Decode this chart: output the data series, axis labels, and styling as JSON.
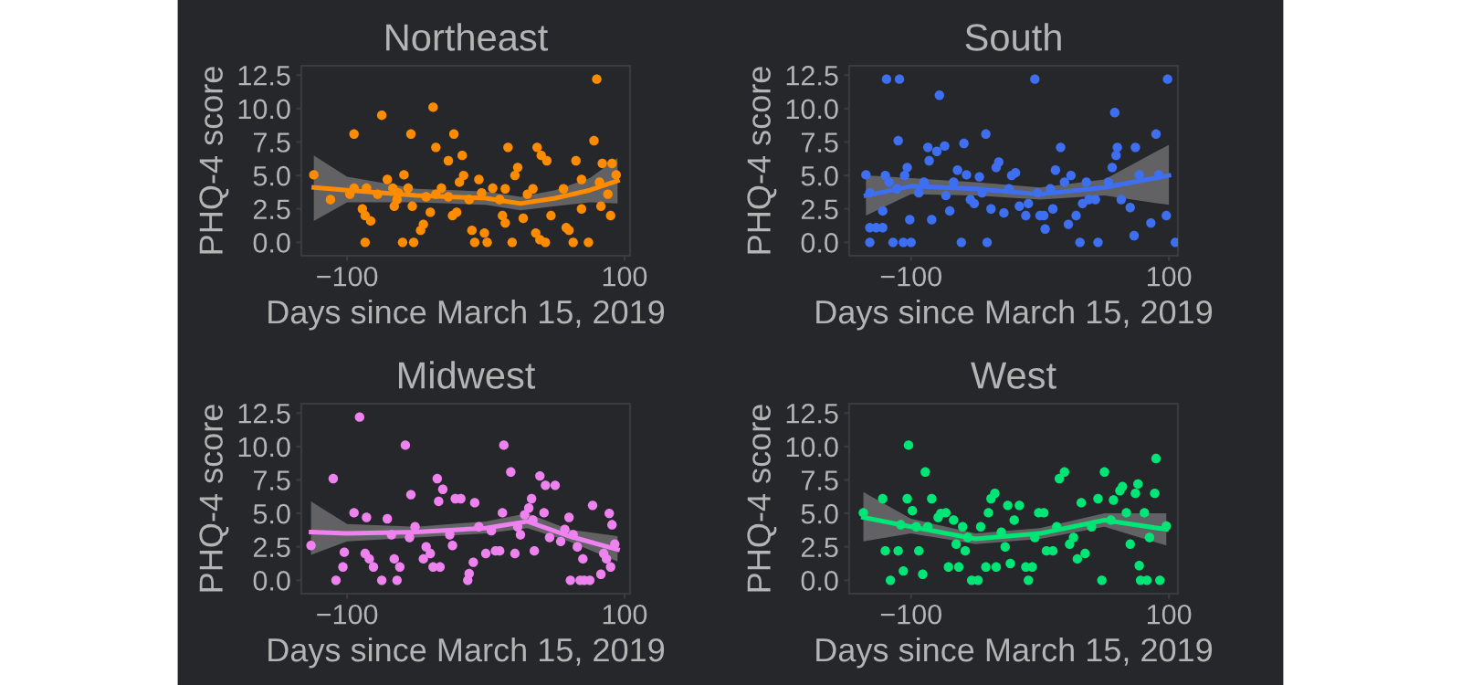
{
  "chart_data": [
    {
      "type": "scatter",
      "title": "Northeast",
      "xlabel": "Days since March 15, 2019",
      "ylabel": "PHQ-4 score",
      "xlim": [
        -133,
        104
      ],
      "ylim": [
        -1,
        13.2
      ],
      "xticks": [
        -100,
        100
      ],
      "yticks": [
        {
          "value": 0,
          "label": "0.0"
        },
        {
          "value": 2.5,
          "label": "2.5"
        },
        {
          "value": 5,
          "label": "5.0"
        },
        {
          "value": 7.5,
          "label": "7.5"
        },
        {
          "value": 10,
          "label": "10.0"
        },
        {
          "value": 12.5,
          "label": "12.5"
        }
      ],
      "series": [
        {
          "color": "#ff8c00",
          "marker": "circle",
          "x": [
            -124,
            -112,
            -95,
            -75,
            -38,
            -54,
            -23,
            -36,
            -17,
            -27,
            -87,
            -60,
            -52,
            -47,
            -45,
            -89,
            -87,
            -83,
            -98,
            -95,
            -86,
            -78,
            -71,
            -67,
            -63,
            -59,
            -56,
            -66,
            -64,
            -53,
            -43,
            -40,
            -36,
            -32,
            -27,
            -24,
            -21,
            -19,
            -16,
            -12,
            -10,
            -8,
            -5,
            -3,
            -1,
            1,
            5,
            10,
            14,
            16,
            19,
            14,
            12,
            21,
            23,
            27,
            30,
            34,
            37,
            40,
            36,
            39,
            43,
            47,
            44,
            56,
            58,
            60,
            63,
            65,
            69,
            69,
            74,
            78,
            80,
            82,
            84,
            83,
            88,
            90,
            91,
            94
          ],
          "values": [
            5.05,
            3.2,
            8.1,
            9.5,
            10.1,
            8.1,
            8.1,
            7.1,
            6.5,
            6.1,
            0,
            0,
            0,
            0.9,
            1.35,
            2.5,
            2,
            1.6,
            3.6,
            4.05,
            4.05,
            3.6,
            4.7,
            4.05,
            3.7,
            5.05,
            4.05,
            2.7,
            3.2,
            2.7,
            3.4,
            2.25,
            3.6,
            4.05,
            3.4,
            2,
            2.25,
            4.5,
            5,
            3.2,
            0.9,
            0,
            4.7,
            3.7,
            0.7,
            0,
            4.05,
            3.2,
            4,
            7.1,
            0,
            1.45,
            2,
            5,
            5.6,
            1.8,
            3.6,
            4,
            7.1,
            6.5,
            0.7,
            0.2,
            0,
            2,
            6.1,
            4,
            1.1,
            0.9,
            0,
            6.1,
            4.7,
            2.5,
            0,
            7.6,
            12.2,
            4.5,
            5.9,
            2.7,
            3.6,
            2,
            5.9,
            5.05
          ]
        },
        {
          "type": "line",
          "marker": "none",
          "color": "#ff8c00",
          "x": [
            -124,
            -100,
            -50,
            0,
            25,
            50,
            75,
            95
          ],
          "values": [
            4.1,
            3.9,
            3.5,
            3.3,
            2.9,
            3.3,
            3.9,
            4.6
          ],
          "lower": [
            1.6,
            3.0,
            3.0,
            2.8,
            2.4,
            2.7,
            3.0,
            2.9
          ],
          "upper": [
            6.5,
            4.9,
            4.0,
            3.8,
            3.4,
            3.9,
            4.8,
            6.3
          ]
        }
      ]
    },
    {
      "type": "scatter",
      "title": "South",
      "xlabel": "Days since March 15, 2019",
      "ylabel": "PHQ-4 score",
      "xlim": [
        -148,
        107
      ],
      "ylim": [
        -1,
        13.2
      ],
      "xticks": [
        -100,
        100
      ],
      "yticks": [
        {
          "value": 0,
          "label": "0.0"
        },
        {
          "value": 2.5,
          "label": "2.5"
        },
        {
          "value": 5,
          "label": "5.0"
        },
        {
          "value": 7.5,
          "label": "7.5"
        },
        {
          "value": 10,
          "label": "10.0"
        },
        {
          "value": 12.5,
          "label": "12.5"
        }
      ],
      "series": [
        {
          "color": "#3d6ff0",
          "marker": "circle",
          "x": [
            -135,
            -132,
            -132,
            -127,
            -122,
            -132,
            -114,
            -106,
            -100,
            -119,
            -109,
            -110,
            -122,
            -120,
            -117,
            -111,
            -105,
            -103,
            -101,
            -94,
            -90,
            -86,
            -87,
            -84,
            -80,
            -78,
            -74,
            -73,
            -70,
            -67,
            -64,
            -61,
            -59,
            -57,
            -54,
            -51,
            -47,
            -45,
            -42,
            -41,
            -38,
            -34,
            -32,
            -28,
            -24,
            -22,
            -19,
            -16,
            -11,
            -9,
            -4,
            -2,
            0,
            3,
            4,
            8,
            10,
            12,
            16,
            19,
            22,
            24,
            28,
            31,
            33,
            36,
            38,
            43,
            45,
            53,
            56,
            58,
            60,
            59,
            63,
            70,
            73,
            74,
            77,
            86,
            90,
            92,
            98,
            99,
            105
          ],
          "values": [
            5.05,
            3.7,
            1.1,
            1.1,
            1.1,
            0,
            0,
            0,
            0,
            12.2,
            12.2,
            7.6,
            2.35,
            5,
            4.5,
            4,
            5,
            5.6,
            1.7,
            3.7,
            4.5,
            6.1,
            7.1,
            1.7,
            6.8,
            11,
            7.2,
            3.5,
            2.35,
            4.5,
            5.4,
            0,
            7.4,
            5.05,
            3.2,
            2.9,
            4.9,
            3.7,
            8.1,
            0,
            2.5,
            5.6,
            6,
            2.2,
            4,
            5,
            5.2,
            2.7,
            2,
            2.9,
            12.2,
            3.7,
            2,
            2,
            1,
            4,
            2.5,
            5.4,
            7.1,
            4.5,
            1.35,
            5,
            2,
            0,
            2.9,
            4.5,
            3.2,
            3.2,
            0,
            4.5,
            5.6,
            9.7,
            7.1,
            6.5,
            3.2,
            2.6,
            0.5,
            7.1,
            5.05,
            1.45,
            8.1,
            5.05,
            2,
            12.2,
            0
          ]
        },
        {
          "type": "line",
          "marker": "none",
          "color": "#3d6ff0",
          "x": [
            -135,
            -100,
            -50,
            0,
            50,
            100
          ],
          "values": [
            3.5,
            4.2,
            4.0,
            3.6,
            4.1,
            5.0
          ],
          "lower": [
            2.0,
            3.6,
            3.5,
            3.2,
            3.5,
            2.8
          ],
          "upper": [
            5.0,
            4.8,
            4.5,
            4.1,
            4.7,
            7.3
          ]
        }
      ]
    },
    {
      "type": "scatter",
      "title": "Midwest",
      "xlabel": "Days since March 15, 2019",
      "ylabel": "PHQ-4 score",
      "xlim": [
        -133,
        104
      ],
      "ylim": [
        -1,
        13.2
      ],
      "xticks": [
        -100,
        100
      ],
      "yticks": [
        {
          "value": 0,
          "label": "0.0"
        },
        {
          "value": 2.5,
          "label": "2.5"
        },
        {
          "value": 5,
          "label": "5.0"
        },
        {
          "value": 7.5,
          "label": "7.5"
        },
        {
          "value": 10,
          "label": "10.0"
        },
        {
          "value": 12.5,
          "label": "12.5"
        }
      ],
      "series": [
        {
          "color": "#ee82ee",
          "marker": "circle",
          "x": [
            -126,
            -110,
            -108,
            -103,
            -102,
            -95,
            -91,
            -86,
            -87,
            -84,
            -81,
            -75,
            -71,
            -68,
            -64,
            -66,
            -62,
            -58,
            -54,
            -55,
            -51,
            -45,
            -43,
            -40,
            -38,
            -35,
            -34,
            -31,
            -33,
            -26,
            -24,
            -22,
            -18,
            -13,
            -12,
            -9,
            -8,
            -5,
            0,
            4,
            7,
            10,
            12,
            13,
            18,
            21,
            23,
            25,
            28,
            31,
            33,
            34,
            35,
            39,
            42,
            43,
            46,
            50,
            54,
            57,
            60,
            61,
            63,
            68,
            71,
            75,
            70,
            66,
            77,
            83,
            85,
            87,
            89,
            91,
            90,
            93
          ],
          "values": [
            2.6,
            7.6,
            0,
            1,
            2.1,
            5.05,
            12.2,
            4.7,
            2,
            1.6,
            1,
            0,
            4.6,
            3.4,
            0,
            1.6,
            1,
            10.1,
            6.4,
            3.2,
            4,
            1.6,
            2.5,
            2,
            1,
            7.6,
            5.9,
            6.8,
            1,
            3.4,
            2.6,
            6.1,
            6.1,
            0,
            0.5,
            1.35,
            5.8,
            4,
            2,
            3.7,
            2.2,
            2.2,
            5.05,
            10.1,
            8.1,
            2,
            4,
            3.4,
            4.9,
            5.4,
            6.1,
            4.5,
            2.2,
            7.8,
            5.05,
            7.1,
            3.2,
            7.1,
            2.9,
            3.8,
            4.7,
            0,
            3.4,
            0,
            0,
            0,
            1.6,
            2.5,
            5.6,
            0.45,
            2,
            1.6,
            5,
            4.15,
            1,
            2.7
          ]
        },
        {
          "type": "line",
          "marker": "none",
          "color": "#ee82ee",
          "x": [
            -126,
            -100,
            -50,
            0,
            30,
            60,
            95
          ],
          "values": [
            3.6,
            3.5,
            3.6,
            3.9,
            4.4,
            3.3,
            2.3
          ],
          "lower": [
            1.9,
            2.9,
            3.2,
            3.5,
            3.9,
            2.9,
            1.4
          ],
          "upper": [
            5.9,
            4.2,
            4.0,
            4.4,
            5.0,
            3.8,
            3.3
          ]
        }
      ]
    },
    {
      "type": "scatter",
      "title": "West",
      "xlabel": "Days since March 15, 2019",
      "ylabel": "PHQ-4 score",
      "xlim": [
        -148,
        107
      ],
      "ylim": [
        -1,
        13.2
      ],
      "xticks": [
        -100,
        100
      ],
      "yticks": [
        {
          "value": 0,
          "label": "0.0"
        },
        {
          "value": 2.5,
          "label": "2.5"
        },
        {
          "value": 5,
          "label": "5.0"
        },
        {
          "value": 7.5,
          "label": "7.5"
        },
        {
          "value": 10,
          "label": "10.0"
        },
        {
          "value": 12.5,
          "label": "12.5"
        }
      ],
      "series": [
        {
          "color": "#00e676",
          "marker": "circle",
          "x": [
            -137,
            -122,
            -120,
            -116,
            -110,
            -108,
            -106,
            -103,
            -102,
            -99,
            -96,
            -94,
            -91,
            -89,
            -87,
            -84,
            -79,
            -77,
            -73,
            -71,
            -67,
            -65,
            -63,
            -60,
            -58,
            -56,
            -53,
            -48,
            -46,
            -42,
            -40,
            -38,
            -35,
            -34,
            -30,
            -27,
            -25,
            -23,
            -20,
            -16,
            -11,
            -9,
            -6,
            -4,
            -1,
            3,
            5,
            10,
            13,
            15,
            19,
            23,
            26,
            29,
            32,
            35,
            40,
            45,
            48,
            50,
            55,
            57,
            62,
            64,
            67,
            70,
            74,
            76,
            77,
            78,
            83,
            81,
            85,
            89,
            90,
            93,
            98
          ],
          "values": [
            5.05,
            6.1,
            2.2,
            0,
            2.2,
            4.15,
            0.7,
            6.1,
            10.1,
            5.2,
            4,
            2.2,
            0.45,
            8.1,
            4,
            6.1,
            4.7,
            5,
            5.05,
            1,
            4.5,
            2.7,
            1,
            4,
            2.2,
            3.2,
            0,
            0,
            4,
            1,
            5.05,
            6.1,
            6.5,
            1,
            3.6,
            2.5,
            5.6,
            1.25,
            4.5,
            5.6,
            1,
            0,
            1,
            3.2,
            5.05,
            5.05,
            2.2,
            2.2,
            4,
            7.6,
            8.1,
            2.7,
            3.2,
            1.6,
            5.8,
            2,
            4,
            6.1,
            0,
            8.1,
            4.5,
            6,
            6.7,
            7,
            5.05,
            2.7,
            6.5,
            7.2,
            1.1,
            0,
            0,
            5.05,
            3.2,
            6.5,
            9.1,
            0,
            4.05
          ]
        },
        {
          "type": "line",
          "marker": "none",
          "color": "#00e676",
          "x": [
            -137,
            -100,
            -50,
            0,
            50,
            98
          ],
          "values": [
            4.7,
            4.0,
            3.1,
            3.5,
            4.5,
            3.8
          ],
          "lower": [
            2.9,
            3.5,
            2.7,
            3.1,
            4.0,
            2.6
          ],
          "upper": [
            6.6,
            4.6,
            3.5,
            3.9,
            5.0,
            5.0
          ]
        }
      ]
    }
  ]
}
